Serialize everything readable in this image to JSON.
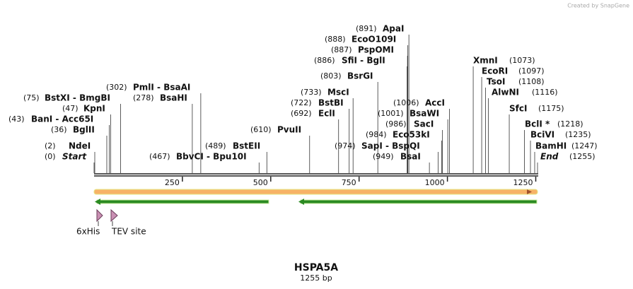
{
  "logo": "Created by SnapGene",
  "map": {
    "title": "HSPA5A",
    "length": {
      "value": 1255,
      "label": "1255 bp"
    },
    "ticks": [
      250,
      500,
      750,
      1000,
      1250
    ],
    "sites": [
      {
        "name": "Start",
        "position": {
          "value": 0,
          "label": "(0)"
        }
      },
      {
        "name": "NdeI",
        "position": {
          "value": 2,
          "label": "(2)"
        }
      },
      {
        "name": "BglII",
        "position": {
          "value": 36,
          "label": "(36)"
        }
      },
      {
        "name": "BanI  - Acc65I",
        "position": {
          "value": 43,
          "label": "(43)"
        }
      },
      {
        "name": "KpnI",
        "position": {
          "value": 47,
          "label": "(47)"
        }
      },
      {
        "name": "BstXI  - BmgBI",
        "position": {
          "value": 75,
          "label": "(75)"
        }
      },
      {
        "name": "BsaHI",
        "position": {
          "value": 278,
          "label": "(278)"
        }
      },
      {
        "name": "PmlI  - BsaAI",
        "position": {
          "value": 302,
          "label": "(302)"
        }
      },
      {
        "name": "BbvCI  - Bpu10I",
        "position": {
          "value": 467,
          "label": "(467)"
        }
      },
      {
        "name": "BstEII",
        "position": {
          "value": 489,
          "label": "(489)"
        }
      },
      {
        "name": "PvuII",
        "position": {
          "value": 610,
          "label": "(610)"
        }
      },
      {
        "name": "EclI",
        "position": {
          "value": 692,
          "label": "(692)"
        }
      },
      {
        "name": "BstBI",
        "position": {
          "value": 722,
          "label": "(722)"
        }
      },
      {
        "name": "MscI",
        "position": {
          "value": 733,
          "label": "(733)"
        }
      },
      {
        "name": "BsrGI",
        "position": {
          "value": 803,
          "label": "(803)"
        }
      },
      {
        "name": "SfiI  - BglI",
        "position": {
          "value": 886,
          "label": "(886)"
        }
      },
      {
        "name": "PspOMI",
        "position": {
          "value": 887,
          "label": "(887)"
        }
      },
      {
        "name": "EcoO109I",
        "position": {
          "value": 888,
          "label": "(888)"
        }
      },
      {
        "name": "ApaI",
        "position": {
          "value": 891,
          "label": "(891)"
        }
      },
      {
        "name": "BsaI",
        "position": {
          "value": 949,
          "label": "(949)"
        }
      },
      {
        "name": "SapI  - BspQI",
        "position": {
          "value": 974,
          "label": "(974)"
        }
      },
      {
        "name": "Eco53kI",
        "position": {
          "value": 984,
          "label": "(984)"
        }
      },
      {
        "name": "SacI",
        "position": {
          "value": 986,
          "label": "(986)"
        }
      },
      {
        "name": "BsaWI",
        "position": {
          "value": 1001,
          "label": "(1001)"
        }
      },
      {
        "name": "AccI",
        "position": {
          "value": 1006,
          "label": "(1006)"
        }
      },
      {
        "name": "XmnI",
        "position": {
          "value": 1073,
          "label": "(1073)"
        }
      },
      {
        "name": "EcoRI",
        "position": {
          "value": 1097,
          "label": "(1097)"
        }
      },
      {
        "name": "TsoI",
        "position": {
          "value": 1108,
          "label": "(1108)"
        }
      },
      {
        "name": "AlwNI",
        "position": {
          "value": 1116,
          "label": "(1116)"
        }
      },
      {
        "name": "SfcI",
        "position": {
          "value": 1175,
          "label": "(1175)"
        }
      },
      {
        "name": "BclI *",
        "position": {
          "value": 1218,
          "label": "(1218)"
        }
      },
      {
        "name": "BciVI",
        "position": {
          "value": 1235,
          "label": "(1235)"
        }
      },
      {
        "name": "BamHI",
        "position": {
          "value": 1247,
          "label": "(1247)"
        }
      },
      {
        "name": "End",
        "position": {
          "value": 1255,
          "label": "(1255)"
        }
      }
    ],
    "features": [
      "6xHis",
      "TEV site"
    ]
  }
}
